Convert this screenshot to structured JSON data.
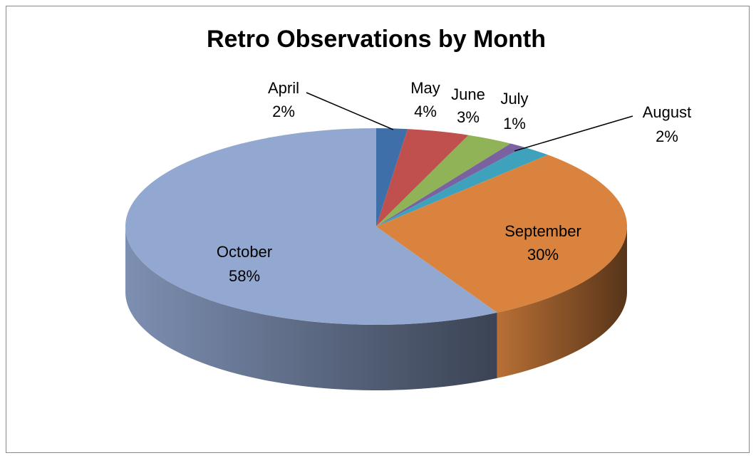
{
  "chart_data": {
    "type": "pie",
    "title": "Retro Observations by Month",
    "categories": [
      "April",
      "May",
      "June",
      "July",
      "August",
      "September",
      "October"
    ],
    "values": [
      2,
      4,
      3,
      1,
      2,
      30,
      58
    ],
    "value_labels": [
      "2%",
      "4%",
      "3%",
      "1%",
      "2%",
      "30%",
      "58%"
    ],
    "colors": [
      "#3f6fa8",
      "#c0504d",
      "#8fb356",
      "#7a61a0",
      "#3fa2bd",
      "#d9833f",
      "#93a8d1"
    ]
  }
}
